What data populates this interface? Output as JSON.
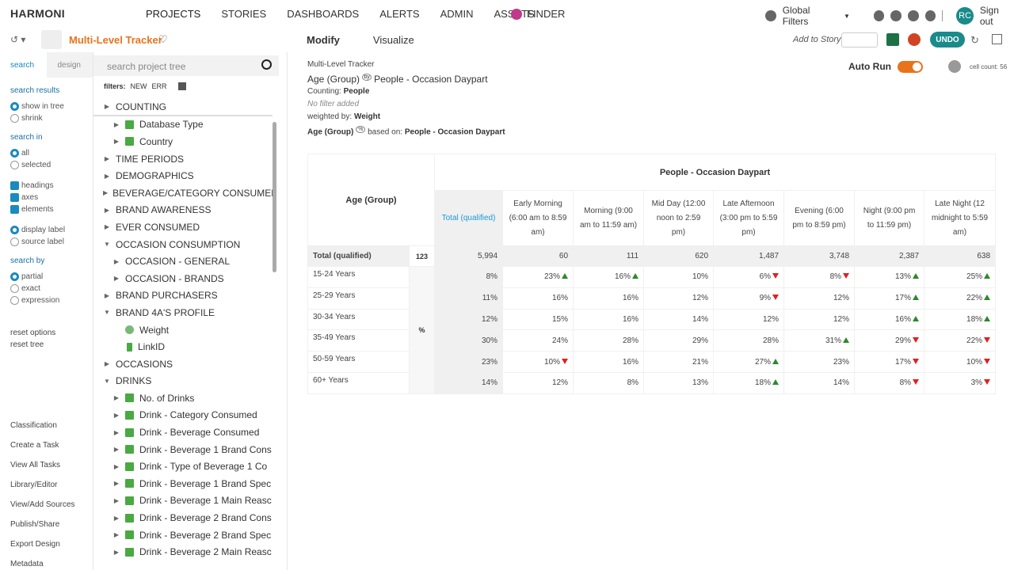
{
  "nav": {
    "brand": "HARMONI",
    "items": [
      "PROJECTS",
      "STORIES",
      "DASHBOARDS",
      "ALERTS",
      "ADMIN",
      "ASSETS"
    ],
    "finder": "FINDER",
    "global_filters": "Global Filters",
    "user": "RC",
    "sign_out": "Sign out"
  },
  "toolbar": {
    "title": "Multi-Level Tracker",
    "tabs": [
      "Modify",
      "Visualize"
    ],
    "add_to_story": "Add to Story",
    "undo": "UNDO"
  },
  "sidebar": {
    "tabs": [
      "search",
      "design"
    ],
    "sections": [
      {
        "title": "search results",
        "items": [
          {
            "label": "show in tree",
            "control": "radio",
            "checked": true
          },
          {
            "label": "shrink",
            "control": "radio",
            "checked": false
          }
        ]
      },
      {
        "title": "search in",
        "items": [
          {
            "label": "all",
            "control": "radio",
            "checked": true
          },
          {
            "label": "selected",
            "control": "radio",
            "checked": false
          }
        ]
      },
      {
        "items": [
          {
            "label": "headings",
            "control": "check",
            "checked": true
          },
          {
            "label": "axes",
            "control": "check",
            "checked": true
          },
          {
            "label": "elements",
            "control": "check",
            "checked": true
          }
        ]
      },
      {
        "items": [
          {
            "label": "display label",
            "control": "radio",
            "checked": true
          },
          {
            "label": "source label",
            "control": "radio",
            "checked": false
          }
        ]
      },
      {
        "title": "search by",
        "items": [
          {
            "label": "partial",
            "control": "radio",
            "checked": true
          },
          {
            "label": "exact",
            "control": "radio",
            "checked": false
          },
          {
            "label": "expression",
            "control": "radio",
            "checked": false
          }
        ]
      }
    ],
    "actions": [
      "reset options",
      "reset tree"
    ],
    "links": [
      "Classification",
      "Create a Task",
      "View All Tasks",
      "Library/Editor",
      "View/Add Sources",
      "Publish/Share",
      "Export Design",
      "Metadata"
    ]
  },
  "tree": {
    "search_placeholder": "search project tree",
    "filters_label": "filters:",
    "filters": [
      "NEW",
      "ERR"
    ],
    "items": [
      {
        "label": "COUNTING",
        "level": 0,
        "kind": "folder"
      },
      {
        "label": "Database Type",
        "level": 1,
        "kind": "var"
      },
      {
        "label": "Country",
        "level": 1,
        "kind": "var"
      },
      {
        "label": "TIME PERIODS",
        "level": 0,
        "kind": "folder"
      },
      {
        "label": "DEMOGRAPHICS",
        "level": 0,
        "kind": "folder"
      },
      {
        "label": "BEVERAGE/CATEGORY CONSUMER",
        "level": 0,
        "kind": "folder"
      },
      {
        "label": "BRAND AWARENESS",
        "level": 0,
        "kind": "folder"
      },
      {
        "label": "EVER CONSUMED",
        "level": 0,
        "kind": "folder"
      },
      {
        "label": "OCCASION CONSUMPTION",
        "level": 0,
        "kind": "folder",
        "expanded": true
      },
      {
        "label": "OCCASION - GENERAL",
        "level": 1,
        "kind": "folder"
      },
      {
        "label": "OCCASION - BRANDS",
        "level": 1,
        "kind": "folder"
      },
      {
        "label": "BRAND PURCHASERS",
        "level": 0,
        "kind": "folder"
      },
      {
        "label": "BRAND 4A'S PROFILE",
        "level": 0,
        "kind": "folder",
        "expanded": true
      },
      {
        "label": "Weight",
        "level": 1,
        "kind": "weight"
      },
      {
        "label": "LinkID",
        "level": 1,
        "kind": "id"
      },
      {
        "label": "OCCASIONS",
        "level": 0,
        "kind": "folder"
      },
      {
        "label": "DRINKS",
        "level": 0,
        "kind": "folder",
        "expanded": true
      },
      {
        "label": "No. of Drinks",
        "level": 1,
        "kind": "var"
      },
      {
        "label": "Drink - Category Consumed",
        "level": 1,
        "kind": "var"
      },
      {
        "label": "Drink - Beverage Consumed",
        "level": 1,
        "kind": "var"
      },
      {
        "label": "Drink - Beverage 1 Brand Cons",
        "level": 1,
        "kind": "var"
      },
      {
        "label": "Drink - Type of Beverage 1 Co",
        "level": 1,
        "kind": "var"
      },
      {
        "label": "Drink - Beverage 1 Brand Spec",
        "level": 1,
        "kind": "var"
      },
      {
        "label": "Drink - Beverage 1 Main Reasc",
        "level": 1,
        "kind": "var"
      },
      {
        "label": "Drink - Beverage 2 Brand Cons",
        "level": 1,
        "kind": "var"
      },
      {
        "label": "Drink - Beverage 2 Brand Spec",
        "level": 1,
        "kind": "var"
      },
      {
        "label": "Drink - Beverage 2 Main Reasc",
        "level": 1,
        "kind": "var"
      }
    ]
  },
  "report": {
    "project": "Multi-Level Tracker",
    "rows_var": "Age (Group)",
    "by": "by",
    "cols_var": "People - Occasion Daypart",
    "counting_label": "Counting:",
    "counting": "People",
    "filter": "No filter added",
    "weight_label": "weighted by:",
    "weight": "Weight",
    "base_row": "Age (Group)",
    "base_stat": "%",
    "based_on_label": "based on:",
    "based_on": "People - Occasion Daypart",
    "auto_run": "Auto Run",
    "cell_count": "cell count: 56"
  },
  "table": {
    "row_header": "Age (Group)",
    "col_header": "People - Occasion Daypart",
    "total_header": "Total (qualified)",
    "columns": [
      "Early Morning (6:00 am to 8:59 am)",
      "Morning (9:00 am to 11:59 am)",
      "Mid Day (12:00 noon to 2:59 pm)",
      "Late Afternoon (3:00 pm to 5:59 pm)",
      "Evening (6:00 pm to 8:59 pm)",
      "Night (9:00 pm to 11:59 pm)",
      "Late Night (12 midnight to 5:59 am)"
    ],
    "total_row": {
      "label": "Total (qualified)",
      "stat": "123",
      "values": [
        "5,994",
        "60",
        "111",
        "620",
        "1,487",
        "3,748",
        "2,387",
        "638"
      ]
    },
    "stat": "%",
    "rows": [
      {
        "label": "15-24 Years",
        "values": [
          "8%",
          "23%",
          "16%",
          "10%",
          "6%",
          "8%",
          "13%",
          "25%"
        ],
        "sig": [
          null,
          "up",
          "up",
          null,
          "down",
          "down",
          "up",
          "up"
        ]
      },
      {
        "label": "25-29 Years",
        "values": [
          "11%",
          "16%",
          "16%",
          "12%",
          "9%",
          "12%",
          "17%",
          "22%"
        ],
        "sig": [
          null,
          null,
          null,
          null,
          "down",
          null,
          "up",
          "up"
        ]
      },
      {
        "label": "30-34 Years",
        "values": [
          "12%",
          "15%",
          "16%",
          "14%",
          "12%",
          "12%",
          "16%",
          "18%"
        ],
        "sig": [
          null,
          null,
          null,
          null,
          null,
          null,
          "up",
          "up"
        ]
      },
      {
        "label": "35-49 Years",
        "values": [
          "30%",
          "24%",
          "28%",
          "29%",
          "28%",
          "31%",
          "29%",
          "22%"
        ],
        "sig": [
          null,
          null,
          null,
          null,
          null,
          "up",
          "down",
          "down"
        ]
      },
      {
        "label": "50-59 Years",
        "values": [
          "23%",
          "10%",
          "16%",
          "21%",
          "27%",
          "23%",
          "17%",
          "10%"
        ],
        "sig": [
          null,
          "down",
          null,
          null,
          "up",
          null,
          "down",
          "down"
        ]
      },
      {
        "label": "60+ Years",
        "values": [
          "14%",
          "12%",
          "8%",
          "13%",
          "18%",
          "14%",
          "8%",
          "3%"
        ],
        "sig": [
          null,
          null,
          null,
          null,
          "up",
          null,
          "down",
          "down"
        ]
      }
    ]
  }
}
